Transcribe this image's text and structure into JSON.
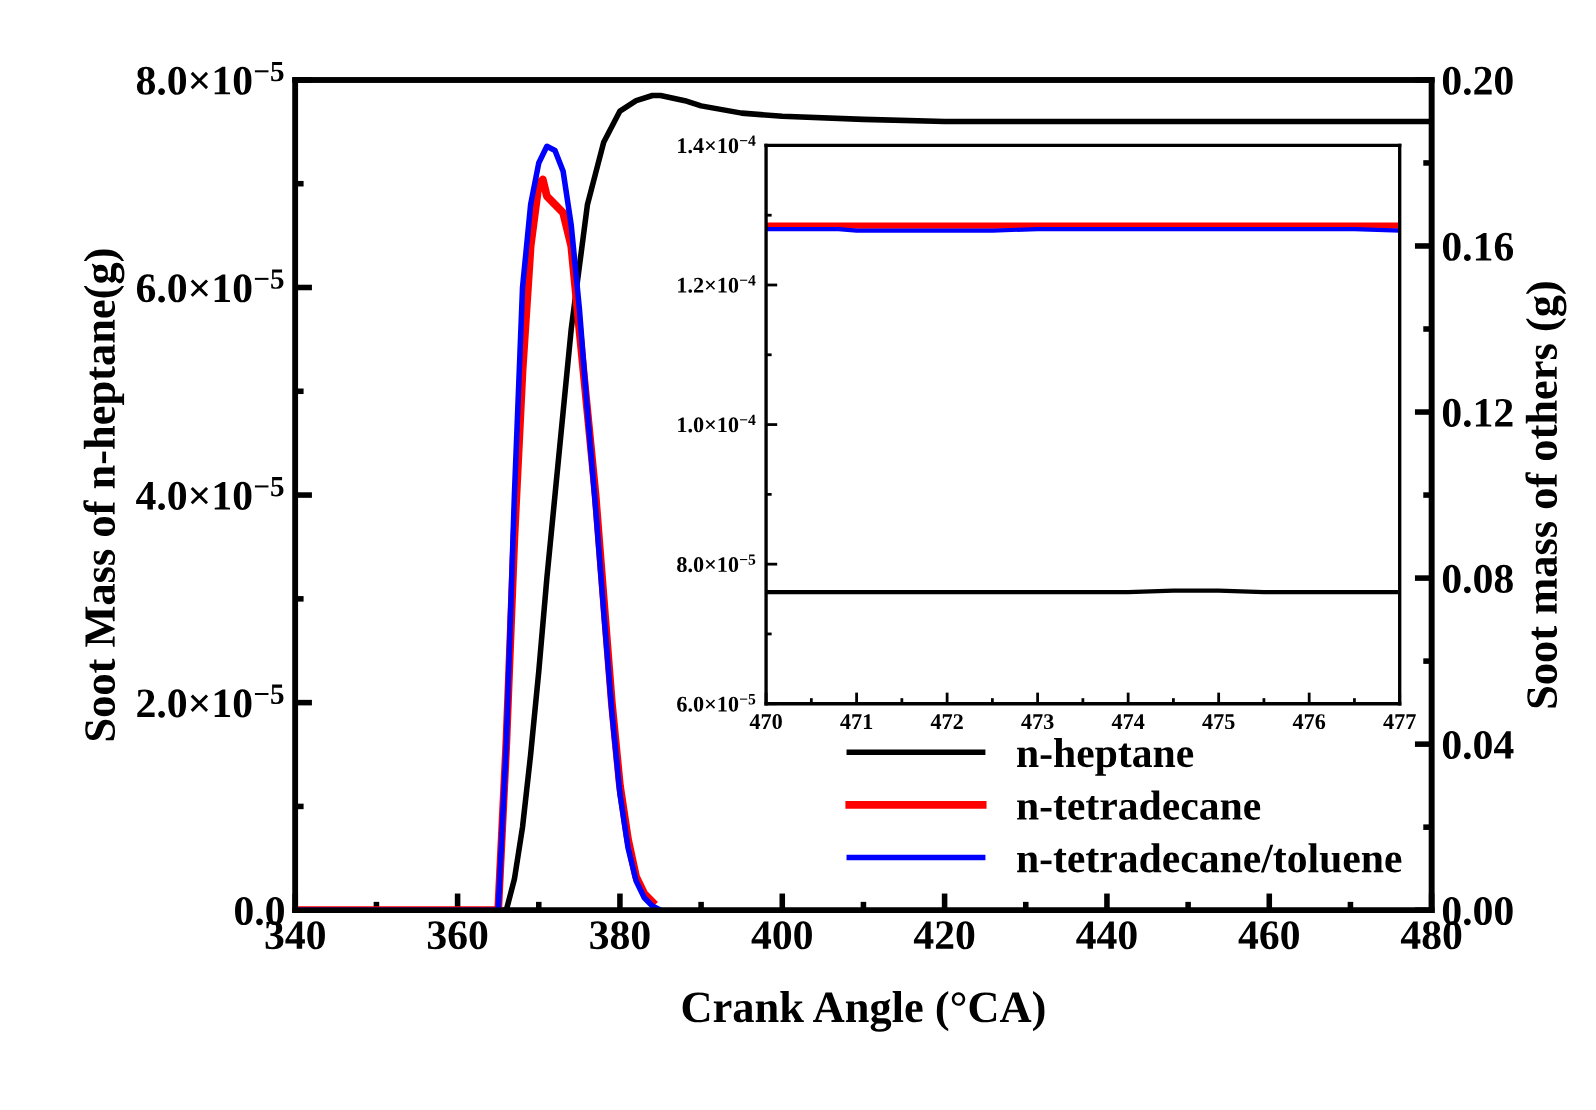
{
  "chart_data": [
    {
      "type": "line",
      "xlabel": "Crank Angle (°CA)",
      "ylabel": "Soot Mass of n-heptane(g)",
      "y2label": "Soot mass of others (g)",
      "xlim": [
        340,
        480
      ],
      "xticks": [
        340,
        360,
        380,
        400,
        420,
        440,
        460,
        480
      ],
      "ylim": [
        0,
        8e-05
      ],
      "yticks": [
        {
          "value": 0,
          "label": "0.0"
        },
        {
          "value": 2e-05,
          "label": "2.0×10$^{−5}$"
        },
        {
          "value": 4e-05,
          "label": "4.0×10$^{−5}$"
        },
        {
          "value": 6e-05,
          "label": "6.0×10$^{−5}$"
        },
        {
          "value": 8e-05,
          "label": "8.0×10$^{−5}$"
        }
      ],
      "y2lim": [
        0,
        0.2
      ],
      "y2ticks": [
        {
          "value": 0,
          "label": "0.00"
        },
        {
          "value": 0.04,
          "label": "0.04"
        },
        {
          "value": 0.08,
          "label": "0.08"
        },
        {
          "value": 0.12,
          "label": "0.12"
        },
        {
          "value": 0.16,
          "label": "0.16"
        },
        {
          "value": 0.2,
          "label": "0.20"
        }
      ],
      "legend": "bottom right",
      "grid": false,
      "line_style": "solid",
      "marker": "none",
      "series": [
        {
          "name": "n-heptane",
          "color": "#000000",
          "x": [
            340,
            366,
            367,
            368,
            369,
            370,
            371,
            372,
            373,
            374,
            375,
            376,
            377,
            378,
            380,
            382,
            384,
            385,
            388,
            390,
            395,
            400,
            410,
            420,
            440,
            460,
            480
          ],
          "values": [
            0,
            0,
            3e-06,
            8e-06,
            1.5e-05,
            2.3e-05,
            3.2e-05,
            4e-05,
            4.8e-05,
            5.6e-05,
            6.2e-05,
            6.8e-05,
            7.1e-05,
            7.4e-05,
            7.7e-05,
            7.8e-05,
            7.85e-05,
            7.85e-05,
            7.8e-05,
            7.75e-05,
            7.68e-05,
            7.65e-05,
            7.62e-05,
            7.6e-05,
            7.6e-05,
            7.6e-05,
            7.6e-05
          ]
        },
        {
          "name": "n-tetradecane",
          "color": "#ff0000",
          "axis": "y2",
          "x": [
            340,
            365,
            366,
            367,
            368,
            369,
            370,
            370.5,
            371,
            372,
            373,
            374,
            375,
            376,
            377,
            378,
            379,
            380,
            381,
            382,
            383,
            384
          ],
          "values": [
            0,
            0,
            0.04,
            0.09,
            0.13,
            0.16,
            0.175,
            0.176,
            0.172,
            0.17,
            0.168,
            0.16,
            0.14,
            0.12,
            0.1,
            0.075,
            0.05,
            0.03,
            0.017,
            0.008,
            0.004,
            0.002
          ]
        },
        {
          "name": "n-tetradecane/toluene",
          "color": "#0000ff",
          "axis": "y2",
          "x": [
            340,
            365,
            366,
            367,
            368,
            369,
            370,
            371,
            372,
            373,
            374,
            375,
            376,
            377,
            378,
            379,
            380,
            381,
            382,
            383,
            384,
            385
          ],
          "values": [
            0,
            0,
            0.04,
            0.1,
            0.15,
            0.17,
            0.18,
            0.184,
            0.183,
            0.178,
            0.165,
            0.145,
            0.12,
            0.097,
            0.072,
            0.048,
            0.028,
            0.015,
            0.007,
            0.003,
            0.001,
            0
          ]
        }
      ]
    },
    {
      "type": "line",
      "xlim": [
        470,
        477
      ],
      "xticks": [
        470,
        471,
        472,
        473,
        474,
        475,
        476,
        477
      ],
      "ylim": [
        6e-05,
        0.00014
      ],
      "yticks": [
        {
          "value": 6e-05,
          "label": "6.0×10$^{−5}$"
        },
        {
          "value": 8e-05,
          "label": "8.0×10$^{−5}$"
        },
        {
          "value": 0.0001,
          "label": "1.0×10$^{−4}$"
        },
        {
          "value": 0.00012,
          "label": "1.2×10$^{−4}$"
        },
        {
          "value": 0.00014,
          "label": "1.4×10$^{−4}$"
        }
      ],
      "legend": false,
      "grid": false,
      "line_style": "solid",
      "marker": "none",
      "series": [
        {
          "color": "#000000",
          "x": [
            470,
            474,
            474.5,
            475,
            475.5,
            477
          ],
          "values": [
            7.6e-05,
            7.6e-05,
            7.62e-05,
            7.62e-05,
            7.6e-05,
            7.6e-05
          ]
        },
        {
          "color": "#ff0000",
          "x": [
            470,
            477
          ],
          "values": [
            0.0001285,
            0.0001285
          ]
        },
        {
          "color": "#0000ff",
          "x": [
            470,
            470.8,
            471,
            472.5,
            473,
            476.5,
            477
          ],
          "values": [
            0.000128,
            0.000128,
            0.0001278,
            0.0001278,
            0.000128,
            0.000128,
            0.0001278
          ]
        }
      ]
    }
  ]
}
